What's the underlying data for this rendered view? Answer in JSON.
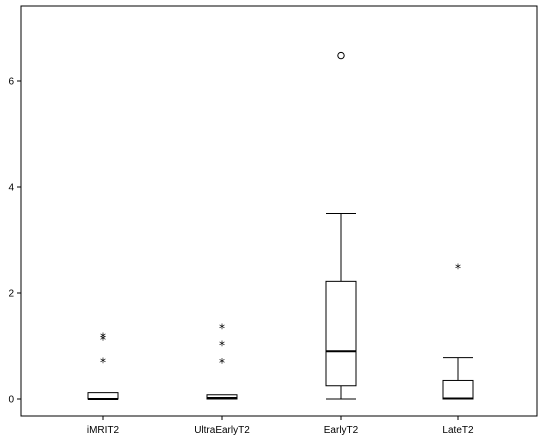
{
  "chart_data": {
    "type": "boxplot",
    "title": "",
    "xlabel": "",
    "ylabel": "",
    "ylim": [
      -0.4,
      7.3
    ],
    "yticks": [
      0,
      2,
      4,
      6
    ],
    "grid": false,
    "categories": [
      "iMRIT2",
      "UltraEarlyT2",
      "EarlyT2",
      "LateT2"
    ],
    "boxes": [
      {
        "category": "iMRIT2",
        "whisker_low": 0,
        "q1": 0,
        "median": 0,
        "q3": 0.12,
        "whisker_high": 0.12,
        "outliers": [
          {
            "value": 0.73,
            "symbol": "*"
          },
          {
            "value": 1.15,
            "symbol": "*"
          },
          {
            "value": 1.2,
            "symbol": "*"
          }
        ]
      },
      {
        "category": "UltraEarlyT2",
        "whisker_low": 0,
        "q1": 0,
        "median": 0.02,
        "q3": 0.08,
        "whisker_high": 0.08,
        "outliers": [
          {
            "value": 0.72,
            "symbol": "*"
          },
          {
            "value": 1.05,
            "symbol": "*"
          },
          {
            "value": 1.37,
            "symbol": "*"
          }
        ]
      },
      {
        "category": "EarlyT2",
        "whisker_low": 0,
        "q1": 0.25,
        "median": 0.9,
        "q3": 2.22,
        "whisker_high": 3.5,
        "outliers": [
          {
            "value": 6.48,
            "symbol": "o"
          }
        ]
      },
      {
        "category": "LateT2",
        "whisker_low": 0,
        "q1": 0,
        "median": 0.01,
        "q3": 0.35,
        "whisker_high": 0.78,
        "outliers": [
          {
            "value": 2.5,
            "symbol": "*"
          }
        ]
      }
    ]
  }
}
